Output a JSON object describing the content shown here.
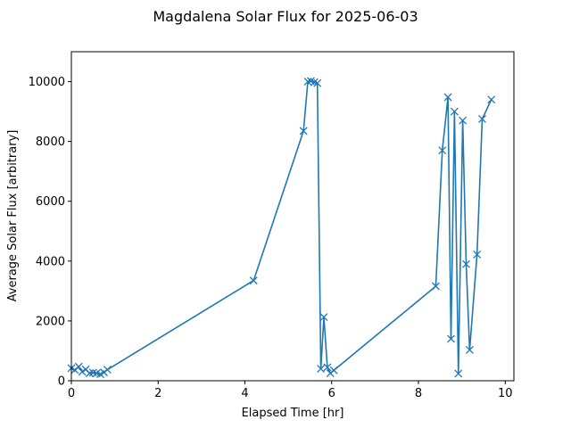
{
  "chart_data": {
    "type": "line",
    "title": "Magdalena Solar Flux for 2025-06-03",
    "xlabel": "Elapsed Time [hr]",
    "ylabel": "Average Solar Flux [arbitrary]",
    "xlim": [
      0,
      10.2
    ],
    "ylim": [
      0,
      11000
    ],
    "xticks": [
      0,
      2,
      4,
      6,
      8,
      10
    ],
    "yticks": [
      0,
      2000,
      4000,
      6000,
      8000,
      10000
    ],
    "grid": false,
    "marker": "x",
    "line_color": "#1f77b4",
    "series": [
      {
        "x": [
          0.0,
          0.08,
          0.17,
          0.25,
          0.33,
          0.42,
          0.5,
          0.58,
          0.67,
          0.75,
          0.83,
          4.2,
          5.35,
          5.45,
          5.52,
          5.6,
          5.67,
          5.75,
          5.82,
          5.9,
          5.97,
          6.05,
          8.4,
          8.55,
          8.68,
          8.75,
          8.83,
          8.92,
          9.02,
          9.1,
          9.18,
          9.35,
          9.47,
          9.68
        ],
        "y": [
          420,
          360,
          470,
          300,
          380,
          250,
          270,
          250,
          220,
          280,
          370,
          3350,
          8350,
          10000,
          10020,
          9980,
          9950,
          400,
          2130,
          450,
          250,
          350,
          3160,
          7700,
          9480,
          1400,
          9000,
          240,
          8700,
          3900,
          1030,
          4220,
          8750,
          9400
        ]
      }
    ]
  }
}
